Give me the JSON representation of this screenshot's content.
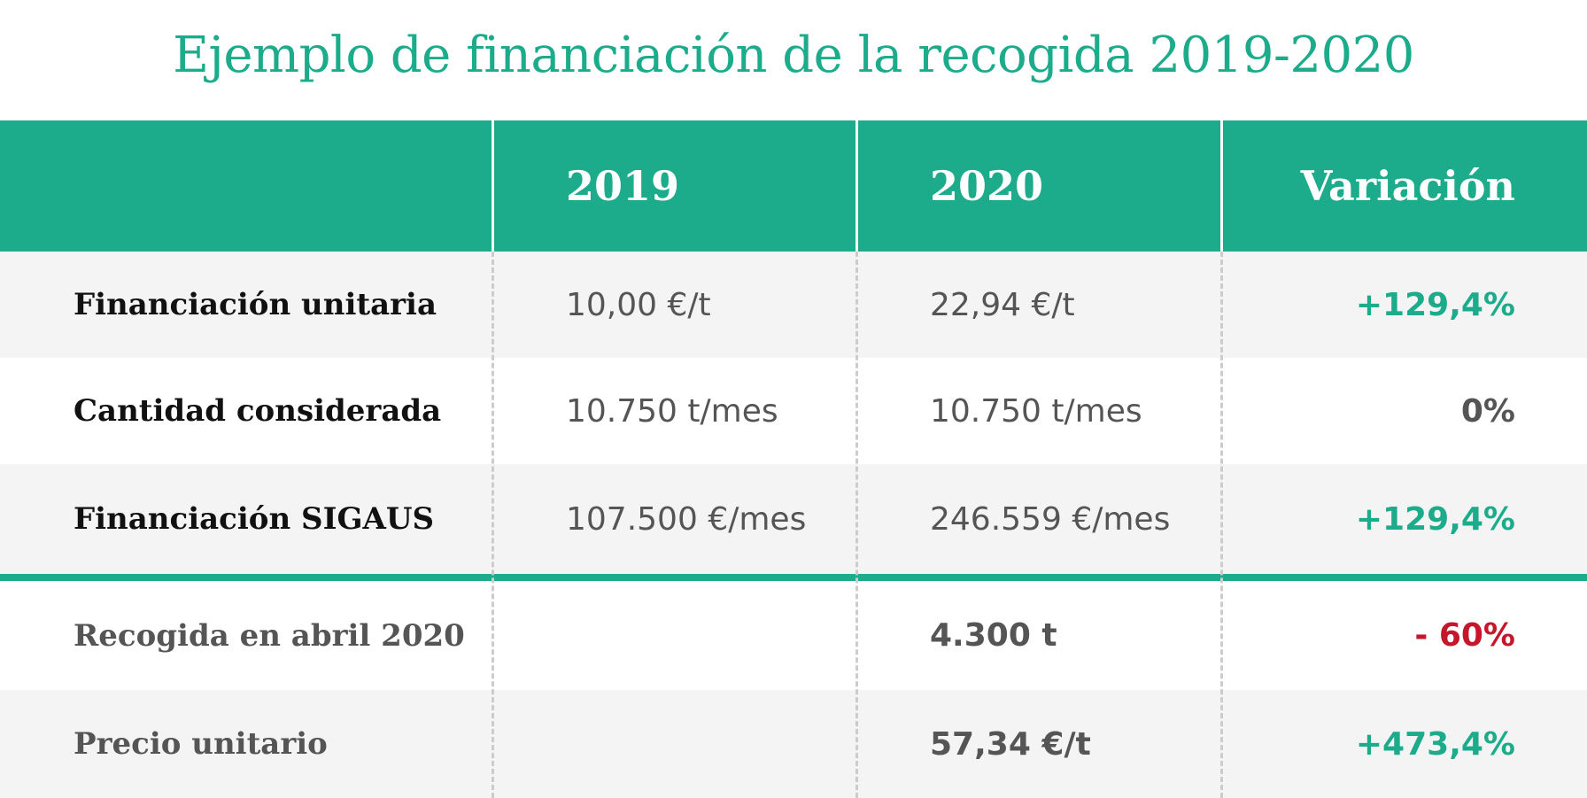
{
  "title": "Ejemplo de financiación de la recogida 2019-2020",
  "colors": {
    "accent": "#1dac8b",
    "negative": "#c5162b",
    "neutral": "#555555",
    "row_alt": "#f4f4f4"
  },
  "table": {
    "headers": [
      "",
      "2019",
      "2020",
      "Variación"
    ],
    "rows": [
      {
        "label": "Financiación unitaria",
        "y2019": "10,00 €/t",
        "y2020": "22,94 €/t",
        "variation": "+129,4%",
        "trend": "positive"
      },
      {
        "label": "Cantidad considerada",
        "y2019": "10.750 t/mes",
        "y2020": "10.750 t/mes",
        "variation": "0%",
        "trend": "neutral"
      },
      {
        "label": "Financiación SIGAUS",
        "y2019": "107.500 €/mes",
        "y2020": "246.559 €/mes",
        "variation": "+129,4%",
        "trend": "positive"
      },
      {
        "label": "Recogida en abril 2020",
        "y2019": "",
        "y2020": "4.300 t",
        "variation": "- 60%",
        "trend": "negative"
      },
      {
        "label": "Precio unitario",
        "y2019": "",
        "y2020": "57,34 €/t",
        "variation": "+473,4%",
        "trend": "positive"
      }
    ]
  }
}
